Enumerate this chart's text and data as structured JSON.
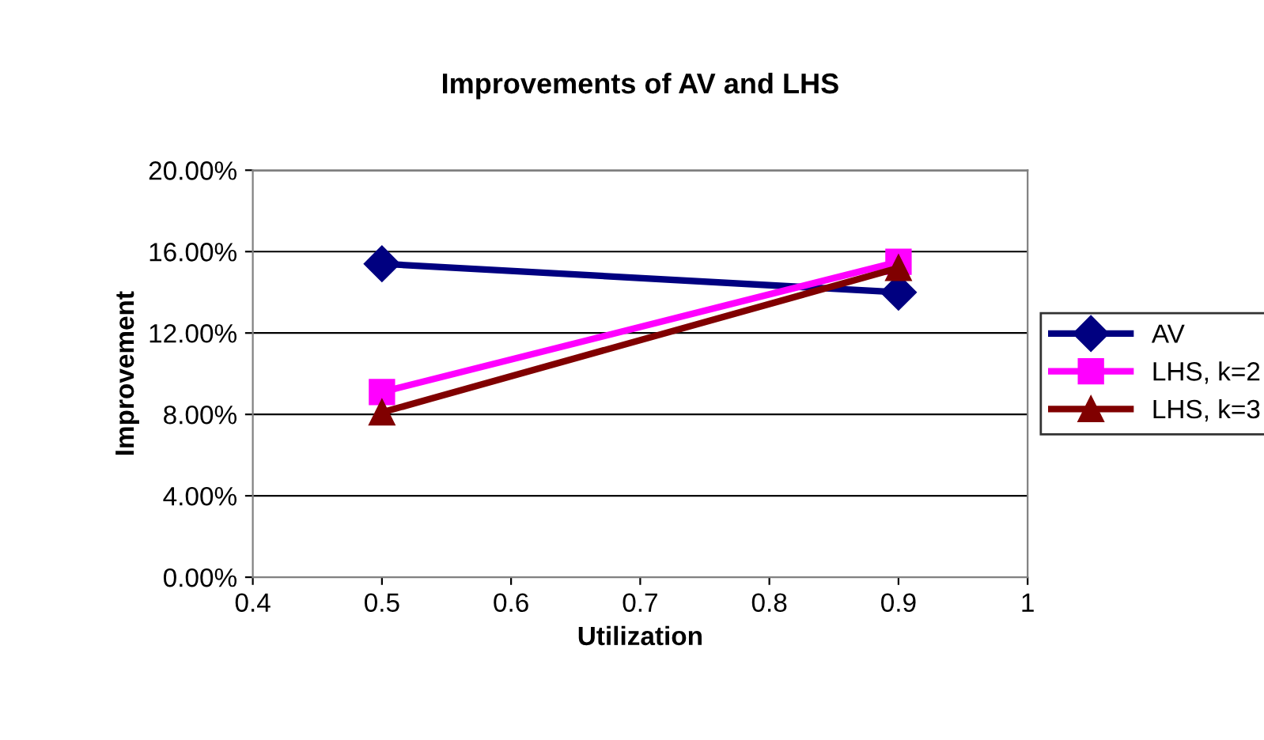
{
  "chart_data": {
    "type": "line",
    "title": "Improvements of AV and LHS",
    "xlabel": "Utilization",
    "ylabel": "Improvement",
    "x": [
      0.5,
      0.9
    ],
    "series": [
      {
        "name": "AV",
        "color": "#000080",
        "marker": "diamond",
        "values": [
          0.154,
          0.14
        ]
      },
      {
        "name": "LHS, k=2",
        "color": "#ff00ff",
        "marker": "square",
        "values": [
          0.091,
          0.155
        ]
      },
      {
        "name": "LHS, k=3",
        "color": "#800000",
        "marker": "triangle",
        "values": [
          0.081,
          0.152
        ]
      }
    ],
    "xlim": [
      0.4,
      1
    ],
    "xticks": [
      0.4,
      0.5,
      0.6,
      0.7,
      0.8,
      0.9,
      1
    ],
    "ylim": [
      0,
      0.2
    ],
    "yticks": [
      {
        "value": 0,
        "label": "0.00%"
      },
      {
        "value": 0.04,
        "label": "4.00%"
      },
      {
        "value": 0.08,
        "label": "8.00%"
      },
      {
        "value": 0.12,
        "label": "12.00%"
      },
      {
        "value": 0.16,
        "label": "16.00%"
      },
      {
        "value": 0.2,
        "label": "20.00%"
      }
    ],
    "grid": "y",
    "legend": "right",
    "line_style": "solid"
  }
}
